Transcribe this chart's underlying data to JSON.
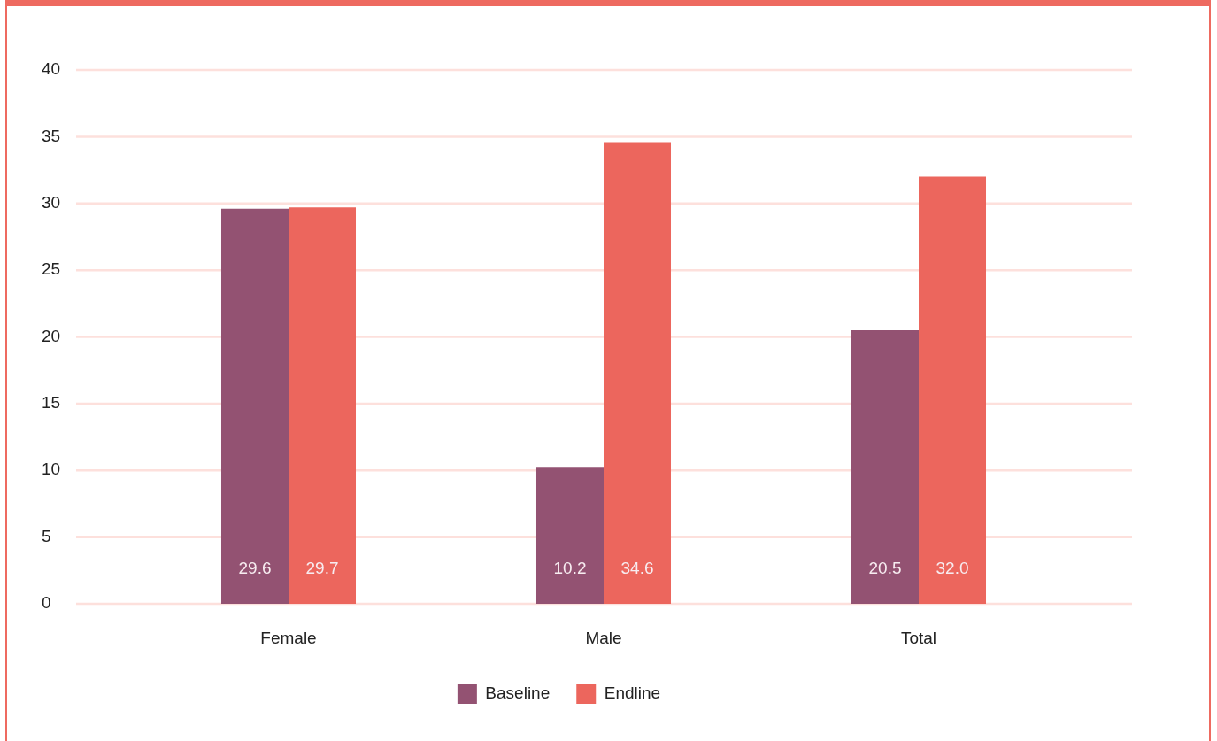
{
  "chart_data": {
    "type": "bar",
    "categories": [
      "Female",
      "Male",
      "Total"
    ],
    "series": [
      {
        "name": "Baseline",
        "color": "#935272",
        "values": [
          29.6,
          10.2,
          20.5
        ],
        "value_labels": [
          "29.6",
          "10.2",
          "20.5"
        ]
      },
      {
        "name": "Endline",
        "color": "#ec665d",
        "values": [
          29.7,
          34.6,
          32.0
        ],
        "value_labels": [
          "29.7",
          "34.6",
          "32.0"
        ]
      }
    ],
    "ylim": [
      0,
      40
    ],
    "yticks": [
      0,
      5,
      10,
      15,
      20,
      25,
      30,
      35,
      40
    ],
    "grid": "y",
    "legend": "bottom"
  }
}
